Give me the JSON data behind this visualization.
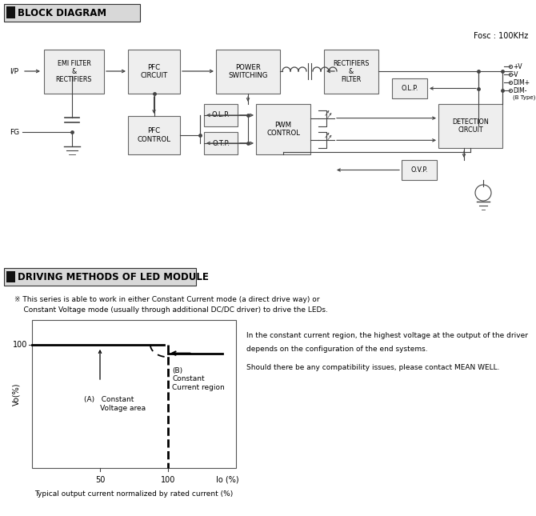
{
  "bg_color": "#ffffff",
  "section1_title": "BLOCK DIAGRAM",
  "section2_title": "DRIVING METHODS OF LED MODULE",
  "fosc_text": "Fosc : 100KHz",
  "description_line1": "※ This series is able to work in either Constant Current mode (a direct drive way) or",
  "description_line2": "    Constant Voltage mode (usually through additional DC/DC driver) to drive the LEDs.",
  "note_line1": "In the constant current region, the highest voltage at the output of the driver",
  "note_line2": "depends on the configuration of the end systems.",
  "note_line3": "Should there be any compatibility issues, please contact MEAN WELL.",
  "caption": "Typical output current normalized by rated current (%)",
  "box_color": "#eeeeee",
  "box_edge": "#666666",
  "line_color": "#444444",
  "text_color": "#000000",
  "chart_line_color": "#000000"
}
